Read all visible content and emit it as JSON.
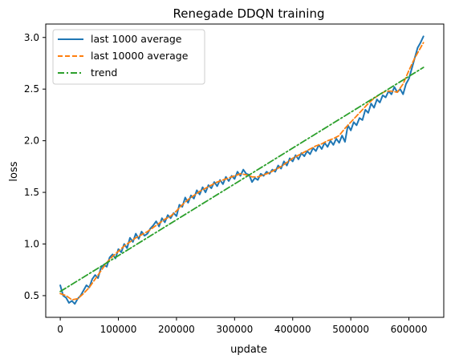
{
  "chart_data": {
    "type": "line",
    "title": "Renegade DDQN training",
    "xlabel": "update",
    "ylabel": "loss",
    "xlim": [
      -25000,
      660000
    ],
    "ylim": [
      0.29,
      3.13
    ],
    "xticks": [
      0,
      100000,
      200000,
      300000,
      400000,
      500000,
      600000
    ],
    "yticks": [
      0.5,
      1.0,
      1.5,
      2.0,
      2.5,
      3.0
    ],
    "xtick_labels": [
      "0",
      "100000",
      "200000",
      "300000",
      "400000",
      "500000",
      "600000"
    ],
    "ytick_labels": [
      "0.5",
      "1.0",
      "1.5",
      "2.0",
      "2.5",
      "3.0"
    ],
    "grid": false,
    "legend_position": "top-left",
    "series": [
      {
        "name": "last 1000 average",
        "color": "#1f77b4",
        "style": "solid",
        "x": [
          0,
          5000,
          10000,
          15000,
          20000,
          25000,
          30000,
          35000,
          40000,
          45000,
          50000,
          55000,
          60000,
          65000,
          70000,
          75000,
          80000,
          85000,
          90000,
          95000,
          100000,
          105000,
          110000,
          115000,
          120000,
          125000,
          130000,
          135000,
          140000,
          145000,
          150000,
          155000,
          160000,
          165000,
          170000,
          175000,
          180000,
          185000,
          190000,
          195000,
          200000,
          205000,
          210000,
          215000,
          220000,
          225000,
          230000,
          235000,
          240000,
          245000,
          250000,
          255000,
          260000,
          265000,
          270000,
          275000,
          280000,
          285000,
          290000,
          295000,
          300000,
          305000,
          310000,
          315000,
          320000,
          325000,
          330000,
          335000,
          340000,
          345000,
          350000,
          355000,
          360000,
          365000,
          370000,
          375000,
          380000,
          385000,
          390000,
          395000,
          400000,
          405000,
          410000,
          415000,
          420000,
          425000,
          430000,
          435000,
          440000,
          445000,
          450000,
          455000,
          460000,
          465000,
          470000,
          475000,
          480000,
          485000,
          490000,
          495000,
          500000,
          505000,
          510000,
          515000,
          520000,
          525000,
          530000,
          535000,
          540000,
          545000,
          550000,
          555000,
          560000,
          565000,
          570000,
          575000,
          580000,
          585000,
          590000,
          595000,
          600000,
          605000,
          610000,
          615000,
          620000,
          625000
        ],
        "y": [
          0.6,
          0.5,
          0.48,
          0.43,
          0.45,
          0.42,
          0.47,
          0.5,
          0.55,
          0.6,
          0.58,
          0.66,
          0.7,
          0.67,
          0.77,
          0.8,
          0.78,
          0.87,
          0.9,
          0.86,
          0.95,
          0.92,
          1.0,
          0.96,
          1.06,
          1.02,
          1.1,
          1.05,
          1.12,
          1.08,
          1.1,
          1.15,
          1.18,
          1.22,
          1.17,
          1.25,
          1.21,
          1.28,
          1.25,
          1.3,
          1.27,
          1.38,
          1.36,
          1.45,
          1.4,
          1.47,
          1.44,
          1.52,
          1.48,
          1.55,
          1.5,
          1.57,
          1.54,
          1.6,
          1.56,
          1.62,
          1.58,
          1.65,
          1.61,
          1.66,
          1.63,
          1.7,
          1.66,
          1.72,
          1.68,
          1.67,
          1.6,
          1.64,
          1.62,
          1.68,
          1.66,
          1.7,
          1.68,
          1.72,
          1.7,
          1.76,
          1.73,
          1.8,
          1.76,
          1.83,
          1.8,
          1.86,
          1.82,
          1.88,
          1.85,
          1.9,
          1.87,
          1.93,
          1.9,
          1.96,
          1.92,
          1.98,
          1.94,
          2.0,
          1.96,
          2.02,
          1.98,
          2.05,
          1.99,
          2.15,
          2.1,
          2.18,
          2.15,
          2.22,
          2.2,
          2.3,
          2.27,
          2.36,
          2.32,
          2.4,
          2.37,
          2.44,
          2.42,
          2.48,
          2.45,
          2.52,
          2.47,
          2.5,
          2.45,
          2.55,
          2.6,
          2.7,
          2.8,
          2.9,
          2.95,
          3.01
        ]
      },
      {
        "name": "last 10000 average",
        "color": "#ff7f0e",
        "style": "dashed",
        "x": [
          0,
          10000,
          20000,
          30000,
          40000,
          50000,
          60000,
          70000,
          80000,
          90000,
          100000,
          110000,
          120000,
          130000,
          140000,
          150000,
          160000,
          170000,
          180000,
          190000,
          200000,
          210000,
          220000,
          230000,
          240000,
          250000,
          260000,
          270000,
          280000,
          290000,
          300000,
          310000,
          320000,
          330000,
          340000,
          350000,
          360000,
          370000,
          380000,
          390000,
          400000,
          410000,
          420000,
          430000,
          440000,
          450000,
          460000,
          470000,
          480000,
          490000,
          500000,
          510000,
          520000,
          530000,
          540000,
          550000,
          560000,
          570000,
          580000,
          590000,
          600000,
          610000,
          620000,
          625000
        ],
        "y": [
          0.52,
          0.5,
          0.46,
          0.47,
          0.52,
          0.58,
          0.66,
          0.74,
          0.82,
          0.88,
          0.93,
          0.98,
          1.02,
          1.06,
          1.09,
          1.12,
          1.16,
          1.2,
          1.24,
          1.27,
          1.32,
          1.38,
          1.43,
          1.47,
          1.51,
          1.54,
          1.57,
          1.6,
          1.62,
          1.64,
          1.66,
          1.68,
          1.67,
          1.65,
          1.65,
          1.67,
          1.69,
          1.72,
          1.75,
          1.79,
          1.83,
          1.86,
          1.89,
          1.92,
          1.95,
          1.97,
          2.0,
          2.02,
          2.05,
          2.12,
          2.18,
          2.24,
          2.3,
          2.36,
          2.41,
          2.45,
          2.48,
          2.48,
          2.47,
          2.55,
          2.68,
          2.8,
          2.9,
          2.95
        ]
      },
      {
        "name": "trend",
        "color": "#2ca02c",
        "style": "dashdot",
        "x": [
          0,
          625000
        ],
        "y": [
          0.54,
          2.71
        ]
      }
    ]
  }
}
